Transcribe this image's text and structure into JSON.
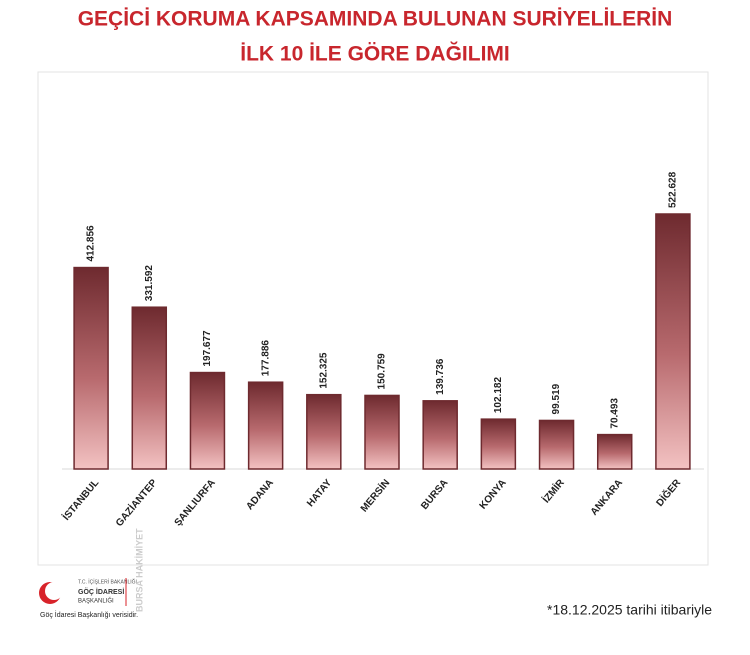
{
  "chart_data": {
    "type": "bar",
    "title": [
      "GEÇİCİ KORUMA KAPSAMINDA BULUNAN SURİYELİLERİN",
      "İLK 10 İLE GÖRE DAĞILIMI"
    ],
    "categories": [
      "İSTANBUL",
      "GAZİANTEP",
      "ŞANLIURFA",
      "ADANA",
      "HATAY",
      "MERSİN",
      "BURSA",
      "KONYA",
      "İZMİR",
      "ANKARA",
      "DİĞER"
    ],
    "values": [
      412856,
      331592,
      197677,
      177886,
      152325,
      150759,
      139736,
      102182,
      99519,
      70493,
      522628
    ],
    "value_labels": [
      "412.856",
      "331.592",
      "197.677",
      "177.886",
      "152.325",
      "150.759",
      "139.736",
      "102.182",
      "99.519",
      "70.493",
      "522.628"
    ],
    "color": "#6e2a2f",
    "footnote": "*18.12.2025 tarihi itibariyle"
  },
  "logo": {
    "ministry": "T.C. İÇİŞLERİ BAKANLIĞI",
    "agency_line1": "GÖÇ İDARESİ",
    "agency_line2": "BAŞKANLIĞI",
    "source": "Göç İdaresi Başkanlığı verisidir.",
    "watermark": "BURSA HAKİMİYET"
  }
}
